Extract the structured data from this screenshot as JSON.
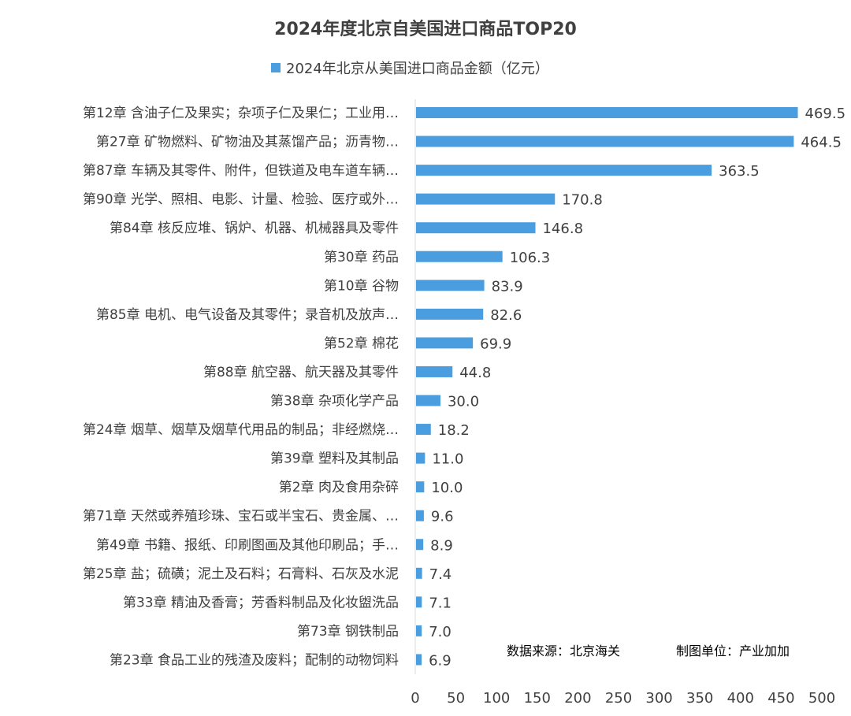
{
  "chart_data": {
    "type": "bar",
    "orientation": "horizontal",
    "title": "2024年度北京自美国进口商品TOP20",
    "series": [
      {
        "name": "2024年北京从美国进口商品金额（亿元）",
        "color": "#4a9ee0",
        "values": [
          469.5,
          464.5,
          363.5,
          170.8,
          146.8,
          106.3,
          83.9,
          82.6,
          69.9,
          44.8,
          30.0,
          18.2,
          11.0,
          10.0,
          9.6,
          8.9,
          7.4,
          7.1,
          7.0,
          6.9
        ]
      }
    ],
    "categories": [
      "第12章  含油子仁及果实；杂项子仁及果仁；工业用…",
      "第27章  矿物燃料、矿物油及其蒸馏产品；沥青物…",
      "第87章  车辆及其零件、附件，但铁道及电车道车辆…",
      "第90章  光学、照相、电影、计量、检验、医疗或外…",
      "第84章  核反应堆、锅炉、机器、机械器具及零件",
      "第30章  药品",
      "第10章  谷物",
      "第85章  电机、电气设备及其零件；录音机及放声…",
      "第52章  棉花",
      "第88章  航空器、航天器及其零件",
      "第38章  杂项化学产品",
      "第24章  烟草、烟草及烟草代用品的制品；非经燃烧…",
      "第39章  塑料及其制品",
      "第2章    肉及食用杂碎",
      "第71章  天然或养殖珍珠、宝石或半宝石、贵金属、…",
      "第49章  书籍、报纸、印刷图画及其他印刷品；手…",
      "第25章  盐；硫磺；泥土及石料；石膏料、石灰及水泥",
      "第33章  精油及香膏；芳香料制品及化妆盥洗品",
      "第73章  钢铁制品",
      "第23章  食品工业的残渣及废料；配制的动物饲料"
    ],
    "value_labels": [
      "469.5",
      "464.5",
      "363.5",
      "170.8",
      "146.8",
      "106.3",
      "83.9",
      "82.6",
      "69.9",
      "44.8",
      "30.0",
      "18.2",
      "11.0",
      "10.0",
      "9.6",
      "8.9",
      "7.4",
      "7.1",
      "7.0",
      "6.9"
    ],
    "xlim": [
      0,
      500
    ],
    "xticks": [
      "0",
      "50",
      "100",
      "150",
      "200",
      "250",
      "300",
      "350",
      "400",
      "450",
      "500"
    ],
    "grid": false,
    "legend_position": "top"
  },
  "notes": {
    "source": "数据来源：北京海关",
    "producer": "制图单位：产业加加"
  }
}
